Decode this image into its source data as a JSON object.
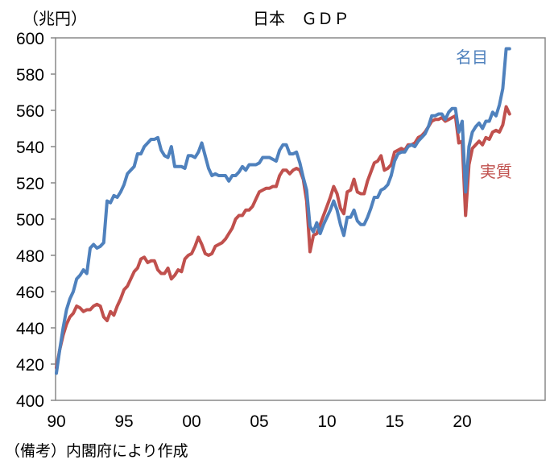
{
  "chart_data": {
    "type": "line",
    "title": "日本　ＧＤＰ",
    "ylabel": "（兆円）",
    "note": "（備考）内閣府により作成",
    "ylim": [
      400,
      600
    ],
    "yticks": [
      400,
      420,
      440,
      460,
      480,
      500,
      520,
      540,
      560,
      580,
      600
    ],
    "xlim": [
      1990,
      2025
    ],
    "xticks": [
      {
        "value": 1990,
        "label": "90"
      },
      {
        "value": 1995,
        "label": "95"
      },
      {
        "value": 2000,
        "label": "00"
      },
      {
        "value": 2005,
        "label": "05"
      },
      {
        "value": 2010,
        "label": "10"
      },
      {
        "value": 2015,
        "label": "15"
      },
      {
        "value": 2020,
        "label": "20"
      }
    ],
    "grid": false,
    "x": [
      1990,
      1990.25,
      1990.5,
      1990.75,
      1991,
      1991.25,
      1991.5,
      1991.75,
      1992,
      1992.25,
      1992.5,
      1992.75,
      1993,
      1993.25,
      1993.5,
      1993.75,
      1994,
      1994.25,
      1994.5,
      1994.75,
      1995,
      1995.25,
      1995.5,
      1995.75,
      1996,
      1996.25,
      1996.5,
      1996.75,
      1997,
      1997.25,
      1997.5,
      1997.75,
      1998,
      1998.25,
      1998.5,
      1998.75,
      1999,
      1999.25,
      1999.5,
      1999.75,
      2000,
      2000.25,
      2000.5,
      2000.75,
      2001,
      2001.25,
      2001.5,
      2001.75,
      2002,
      2002.25,
      2002.5,
      2002.75,
      2003,
      2003.25,
      2003.5,
      2003.75,
      2004,
      2004.25,
      2004.5,
      2004.75,
      2005,
      2005.25,
      2005.5,
      2005.75,
      2006,
      2006.25,
      2006.5,
      2006.75,
      2007,
      2007.25,
      2007.5,
      2007.75,
      2008,
      2008.25,
      2008.5,
      2008.75,
      2009,
      2009.25,
      2009.5,
      2009.75,
      2010,
      2010.25,
      2010.5,
      2010.75,
      2011,
      2011.25,
      2011.5,
      2011.75,
      2012,
      2012.25,
      2012.5,
      2012.75,
      2013,
      2013.25,
      2013.5,
      2013.75,
      2014,
      2014.25,
      2014.5,
      2014.75,
      2015,
      2015.25,
      2015.5,
      2015.75,
      2016,
      2016.25,
      2016.5,
      2016.75,
      2017,
      2017.25,
      2017.5,
      2017.75,
      2018,
      2018.25,
      2018.5,
      2018.75,
      2019,
      2019.25,
      2019.5,
      2019.75,
      2020,
      2020.25,
      2020.5,
      2020.75,
      2021,
      2021.25,
      2021.5,
      2021.75,
      2022,
      2022.25,
      2022.5,
      2022.75,
      2023,
      2023.25,
      2023.5
    ],
    "series": [
      {
        "name": "名目",
        "color": "#4f81bd",
        "values": [
          415,
          428,
          440,
          450,
          456,
          460,
          467,
          469,
          472,
          470,
          484,
          486,
          484,
          485,
          487,
          510,
          509,
          513,
          512,
          515,
          519,
          525,
          527,
          529,
          536,
          536,
          540,
          542,
          544,
          544,
          545,
          538,
          535,
          534,
          540,
          529,
          529,
          529,
          528,
          535,
          535,
          534,
          537,
          542,
          535,
          528,
          524,
          525,
          524,
          524,
          524,
          521,
          524,
          524,
          526,
          529,
          527,
          530,
          530,
          530,
          531,
          534,
          534,
          534,
          533,
          532,
          538,
          541,
          541,
          536,
          536,
          537,
          531,
          523,
          516,
          496,
          493,
          498,
          492,
          497,
          501,
          505,
          510,
          505,
          497,
          491,
          501,
          501,
          505,
          499,
          497,
          497,
          501,
          506,
          512,
          512,
          516,
          517,
          519,
          524,
          532,
          536,
          537,
          537,
          540,
          541,
          540,
          543,
          545,
          547,
          551,
          557,
          557,
          558,
          558,
          555,
          559,
          561,
          561,
          548,
          554,
          515,
          540,
          548,
          551,
          553,
          550,
          554,
          554,
          559,
          557,
          563,
          572,
          594,
          594
        ]
      },
      {
        "name": "実質",
        "color": "#c0504d",
        "values": [
          418,
          428,
          436,
          442,
          446,
          448,
          452,
          451,
          449,
          450,
          450,
          452,
          453,
          452,
          446,
          444,
          449,
          447,
          452,
          456,
          461,
          463,
          467,
          471,
          473,
          478,
          479,
          476,
          477,
          477,
          472,
          470,
          470,
          473,
          467,
          469,
          472,
          471,
          478,
          480,
          481,
          485,
          490,
          486,
          481,
          480,
          481,
          485,
          486,
          487,
          489,
          492,
          495,
          500,
          502,
          502,
          505,
          505,
          507,
          511,
          515,
          516,
          517,
          517,
          518,
          518,
          524,
          527,
          527,
          525,
          527,
          528,
          527,
          522,
          510,
          482,
          491,
          492,
          497,
          502,
          507,
          512,
          518,
          514,
          506,
          503,
          515,
          516,
          522,
          515,
          514,
          514,
          521,
          526,
          531,
          532,
          535,
          527,
          528,
          530,
          537,
          538,
          539,
          538,
          541,
          541,
          542,
          545,
          546,
          548,
          551,
          554,
          555,
          555,
          556,
          554,
          555,
          556,
          557,
          542,
          543,
          502,
          530,
          539,
          541,
          543,
          541,
          545,
          544,
          548,
          549,
          548,
          552,
          562,
          558
        ]
      }
    ]
  }
}
